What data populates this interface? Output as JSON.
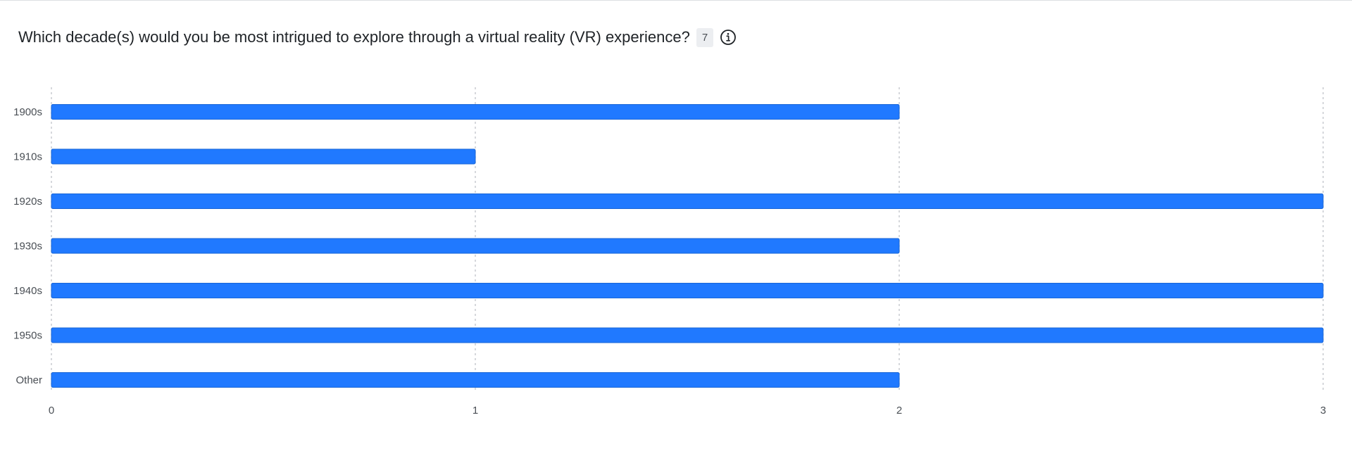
{
  "question": {
    "title": "Which decade(s) would you be most intrigued to explore through a virtual reality (VR) experience?",
    "response_count": "7",
    "info_icon": "info-icon"
  },
  "colors": {
    "bar": "#2079ff",
    "bar_edge": "#1a66d6",
    "grid": "#c9ccd1",
    "label": "#4a4f55"
  },
  "chart_data": {
    "type": "bar",
    "orientation": "horizontal",
    "categories": [
      "1900s",
      "1910s",
      "1920s",
      "1930s",
      "1940s",
      "1950s",
      "Other"
    ],
    "values": [
      2,
      1,
      3,
      2,
      3,
      3,
      2
    ],
    "xlim": [
      0,
      3
    ],
    "xticks": [
      0,
      1,
      2,
      3
    ],
    "grid": "vertical-dotted",
    "legend": "none"
  }
}
